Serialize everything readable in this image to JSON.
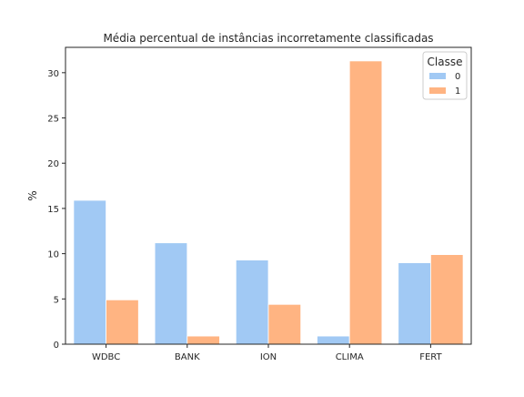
{
  "chart_data": {
    "type": "bar",
    "title": "Média percentual de instâncias incorretamente classificadas",
    "xlabel": "",
    "ylabel": "%",
    "categories": [
      "WDBC",
      "BANK",
      "ION",
      "CLIMA",
      "FERT"
    ],
    "series": [
      {
        "name": "0",
        "values": [
          15.9,
          11.2,
          9.3,
          0.9,
          9.0
        ],
        "color": "#a1c9f4"
      },
      {
        "name": "1",
        "values": [
          4.9,
          0.9,
          4.4,
          31.3,
          9.9
        ],
        "color": "#ffb482"
      }
    ],
    "ylim": [
      0,
      32.8
    ],
    "yticks": [
      0,
      5,
      10,
      15,
      20,
      25,
      30
    ],
    "grid": false,
    "legend": {
      "title": "Classe",
      "placement": "top-right"
    }
  }
}
